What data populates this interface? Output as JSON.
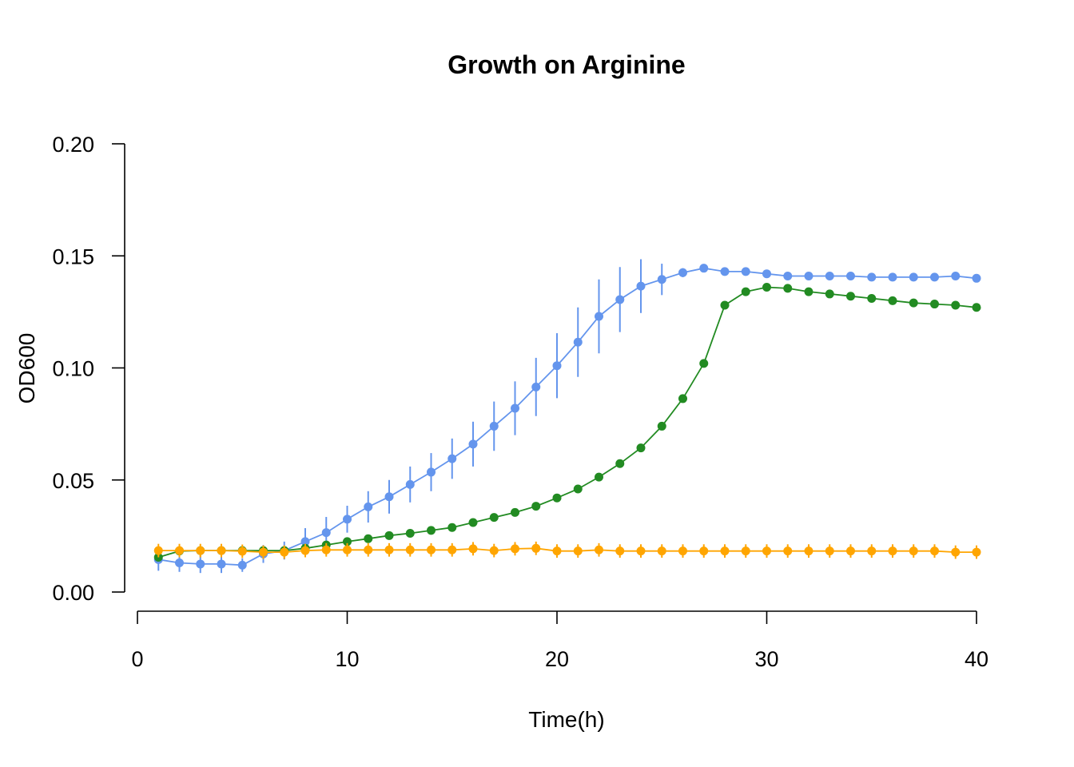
{
  "chart_data": {
    "type": "line",
    "title": "Growth on Arginine",
    "xlabel": "Time(h)",
    "ylabel": "OD600",
    "xlim": [
      0,
      40
    ],
    "ylim": [
      0,
      0.2
    ],
    "x_ticks": [
      0,
      10,
      20,
      30,
      40
    ],
    "x_tick_labels": [
      "0",
      "10",
      "20",
      "30",
      "40"
    ],
    "y_ticks": [
      0,
      0.05,
      0.1,
      0.15,
      0.2
    ],
    "y_tick_labels": [
      "0.00",
      "0.05",
      "0.10",
      "0.15",
      "0.20"
    ],
    "grid": false,
    "legend": "none",
    "x": [
      1,
      2,
      3,
      4,
      5,
      6,
      7,
      8,
      9,
      10,
      11,
      12,
      13,
      14,
      15,
      16,
      17,
      18,
      19,
      20,
      21,
      22,
      23,
      24,
      25,
      26,
      27,
      28,
      29,
      30,
      31,
      32,
      33,
      34,
      35,
      36,
      37,
      38,
      39,
      40
    ],
    "series": [
      {
        "color": "#6495ED",
        "values": [
          0.0145,
          0.013,
          0.0125,
          0.0125,
          0.012,
          0.017,
          0.0185,
          0.0225,
          0.0265,
          0.0325,
          0.038,
          0.0425,
          0.048,
          0.0535,
          0.0595,
          0.066,
          0.074,
          0.082,
          0.0915,
          0.101,
          0.1115,
          0.123,
          0.1305,
          0.1365,
          0.1395,
          0.1425,
          0.1445,
          0.143,
          0.143,
          0.142,
          0.141,
          0.141,
          0.141,
          0.141,
          0.1405,
          0.1405,
          0.1405,
          0.1405,
          0.141,
          0.14
        ],
        "errors": [
          0.005,
          0.004,
          0.004,
          0.004,
          0.003,
          0.004,
          0.004,
          0.006,
          0.007,
          0.006,
          0.007,
          0.0075,
          0.008,
          0.0085,
          0.009,
          0.01,
          0.011,
          0.012,
          0.013,
          0.0145,
          0.0155,
          0.0165,
          0.0145,
          0.012,
          0.007,
          0.002,
          0.001,
          0.001,
          0.001,
          0.001,
          0.001,
          0.001,
          0.001,
          0.001,
          0.001,
          0.001,
          0.001,
          0.001,
          0.001,
          0.001
        ]
      },
      {
        "color": "#228B22",
        "values": [
          0.0155,
          0.0183,
          0.0185,
          0.0185,
          0.0185,
          0.0185,
          0.0185,
          0.0195,
          0.021,
          0.0225,
          0.0238,
          0.0252,
          0.0262,
          0.0275,
          0.0288,
          0.031,
          0.0333,
          0.0355,
          0.0383,
          0.042,
          0.046,
          0.0513,
          0.0573,
          0.0643,
          0.074,
          0.0863,
          0.102,
          0.128,
          0.134,
          0.136,
          0.1355,
          0.134,
          0.133,
          0.132,
          0.131,
          0.13,
          0.129,
          0.1285,
          0.128,
          0.127
        ],
        "errors": [
          0.001,
          0.001,
          0.001,
          0.001,
          0.001,
          0.001,
          0.001,
          0.001,
          0.001,
          0.001,
          0.001,
          0.001,
          0.001,
          0.001,
          0.001,
          0.001,
          0.001,
          0.001,
          0.001,
          0.001,
          0.001,
          0.001,
          0.001,
          0.001,
          0.001,
          0.001,
          0.001,
          0.001,
          0.001,
          0.001,
          0.001,
          0.001,
          0.001,
          0.001,
          0.001,
          0.001,
          0.001,
          0.001,
          0.001,
          0.001
        ]
      },
      {
        "color": "#FFA500",
        "values": [
          0.0185,
          0.0185,
          0.0185,
          0.0185,
          0.0182,
          0.0178,
          0.0178,
          0.0185,
          0.0188,
          0.0188,
          0.0188,
          0.0188,
          0.0188,
          0.0188,
          0.0188,
          0.0193,
          0.0185,
          0.0193,
          0.0195,
          0.0183,
          0.0183,
          0.0188,
          0.0183,
          0.0183,
          0.0183,
          0.0183,
          0.0183,
          0.0183,
          0.0183,
          0.0183,
          0.0183,
          0.0183,
          0.0183,
          0.0183,
          0.0183,
          0.0183,
          0.0183,
          0.0183,
          0.0178,
          0.0178
        ],
        "errors": [
          0.003,
          0.003,
          0.003,
          0.003,
          0.003,
          0.003,
          0.003,
          0.003,
          0.003,
          0.003,
          0.003,
          0.003,
          0.003,
          0.003,
          0.003,
          0.003,
          0.003,
          0.003,
          0.003,
          0.003,
          0.003,
          0.003,
          0.003,
          0.003,
          0.003,
          0.003,
          0.003,
          0.003,
          0.003,
          0.003,
          0.003,
          0.003,
          0.003,
          0.003,
          0.003,
          0.003,
          0.003,
          0.003,
          0.003,
          0.003
        ]
      }
    ]
  }
}
